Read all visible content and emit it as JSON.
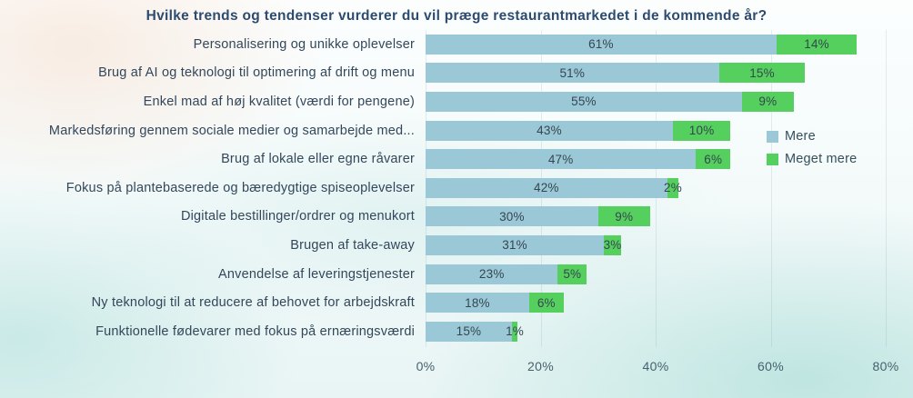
{
  "chart_data": {
    "type": "bar",
    "orientation": "horizontal",
    "stacked": true,
    "title": "Hvilke trends og tendenser vurderer du vil præge restaurantmarkedet i de kommende år?",
    "categories": [
      "Personalisering og unikke oplevelser",
      "Brug af AI og teknologi til optimering af drift og menu",
      "Enkel mad af høj kvalitet (værdi for pengene)",
      "Markedsføring gennem sociale medier og samarbejde med...",
      "Brug af lokale eller egne råvarer",
      "Fokus på plantebaserede og bæredygtige spiseoplevelser",
      "Digitale bestillinger/ordrer og menukort",
      "Brugen af take-away",
      "Anvendelse af leveringstjenester",
      "Ny teknologi til at reducere af behovet for arbejdskraft",
      "Funktionelle fødevarer med fokus på ernæringsværdi"
    ],
    "series": [
      {
        "name": "Mere",
        "color": "#9bc8d7",
        "values": [
          61,
          51,
          55,
          43,
          47,
          42,
          30,
          31,
          23,
          18,
          15
        ]
      },
      {
        "name": "Meget mere",
        "color": "#55d05e",
        "values": [
          14,
          15,
          9,
          10,
          6,
          2,
          9,
          3,
          5,
          6,
          1
        ]
      }
    ],
    "value_suffix": "%",
    "x_ticks": [
      "0%",
      "20%",
      "40%",
      "60%",
      "80%"
    ],
    "xlim": [
      0,
      80
    ],
    "grid": true,
    "legend_position": "right"
  }
}
